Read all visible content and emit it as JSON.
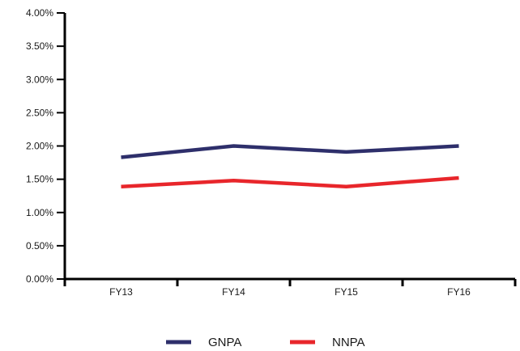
{
  "chart_data": {
    "type": "line",
    "title": "",
    "xlabel": "",
    "ylabel": "",
    "categories": [
      "FY13",
      "FY14",
      "FY15",
      "FY16"
    ],
    "series": [
      {
        "name": "GNPA",
        "values": [
          1.83,
          2.0,
          1.91,
          2.0
        ],
        "color": "#2e2f6b"
      },
      {
        "name": "NNPA",
        "values": [
          1.39,
          1.48,
          1.39,
          1.52
        ],
        "color": "#e8262b"
      }
    ],
    "ylim": [
      0,
      4
    ],
    "y_ticks": [
      "0.00%",
      "0.50%",
      "1.00%",
      "1.50%",
      "2.00%",
      "2.50%",
      "3.00%",
      "3.50%",
      "4.00%"
    ],
    "grid": false,
    "legend_position": "bottom"
  }
}
